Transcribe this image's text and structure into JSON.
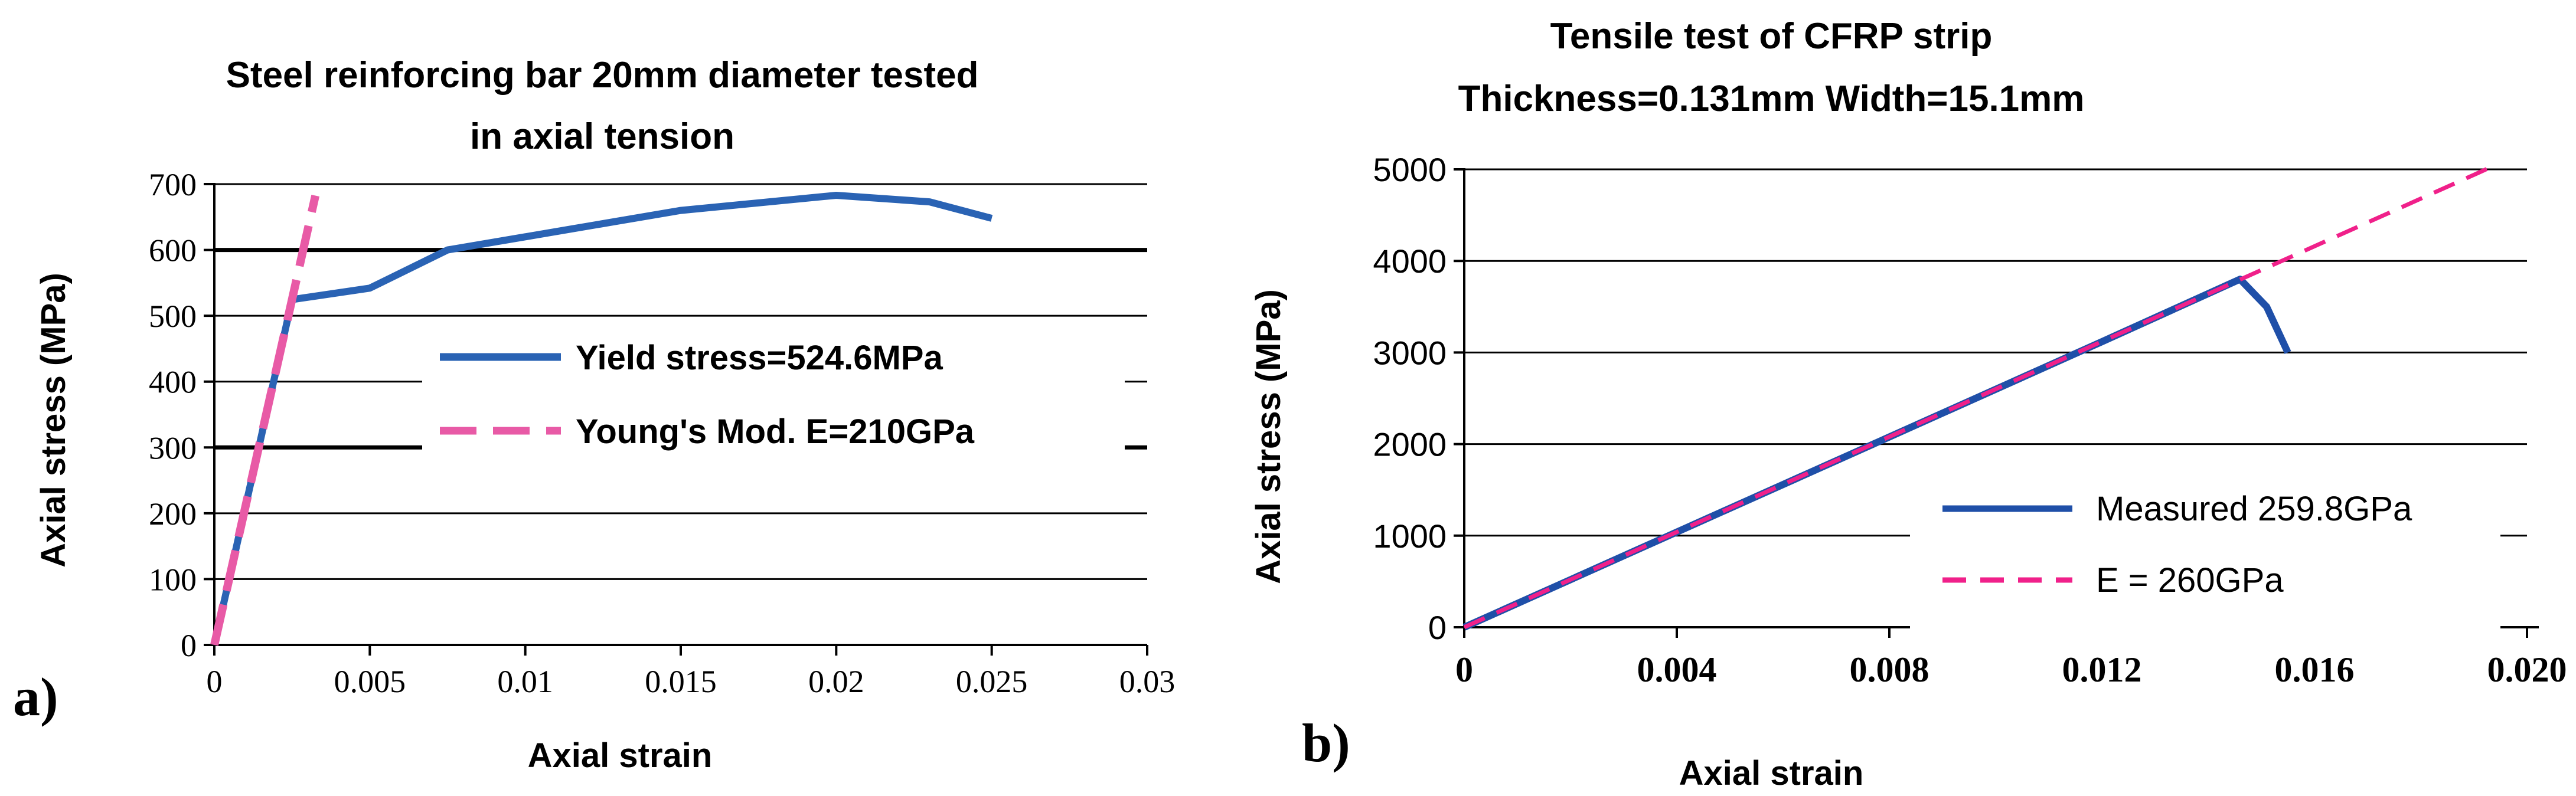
{
  "chart_data": [
    {
      "panel_label": "a)",
      "type": "line",
      "title": [
        "Steel reinforcing bar 20mm diameter tested",
        "in axial tension"
      ],
      "xlabel": "Axial strain",
      "ylabel": "Axial stress (MPa)",
      "xlim": [
        0,
        0.03
      ],
      "ylim": [
        0,
        700
      ],
      "x_ticks": [
        0,
        0.005,
        0.01,
        0.015,
        0.02,
        0.025,
        0.03
      ],
      "x_tick_labels": [
        "0",
        "0.005",
        "0.01",
        "0.015",
        "0.02",
        "0.025",
        "0.03"
      ],
      "y_ticks": [
        0,
        100,
        200,
        300,
        400,
        500,
        600,
        700
      ],
      "y_tick_labels": [
        "0",
        "100",
        "200",
        "300",
        "400",
        "500",
        "600",
        "700"
      ],
      "grid": "horizontal",
      "legend": "center-right",
      "series": [
        {
          "name": "Yield stress=524.6MPa",
          "color": "#2a63b4",
          "style": "solid",
          "x": [
            0,
            0.0025,
            0.005,
            0.0075,
            0.01,
            0.015,
            0.02,
            0.023,
            0.025
          ],
          "y": [
            0,
            524.6,
            542,
            600,
            620,
            660,
            683,
            673,
            648
          ]
        },
        {
          "name": "Young's Mod. E=210GPa",
          "color": "#e85aa6",
          "style": "dashed",
          "x": [
            0,
            0.00325
          ],
          "y": [
            0,
            682.5
          ]
        }
      ]
    },
    {
      "panel_label": "b)",
      "type": "line",
      "title": [
        "Tensile test of CFRP strip",
        "Thickness=0.131mm  Width=15.1mm"
      ],
      "xlabel": "Axial strain",
      "ylabel": "Axial stress (MPa)",
      "xlim": [
        0,
        0.02
      ],
      "ylim": [
        0,
        5000
      ],
      "x_ticks": [
        0,
        0.004,
        0.008,
        0.012,
        0.016,
        0.02
      ],
      "x_tick_labels": [
        "0",
        "0.004",
        "0.008",
        "0.012",
        "0.016",
        "0.020"
      ],
      "y_ticks": [
        0,
        1000,
        2000,
        3000,
        4000,
        5000
      ],
      "y_tick_labels": [
        "0",
        "1000",
        "2000",
        "3000",
        "4000",
        "5000"
      ],
      "grid": "horizontal",
      "legend": "bottom-right",
      "series": [
        {
          "name": "Measured 259.8GPa",
          "color": "#1f4fa8",
          "style": "solid",
          "x": [
            0,
            0.004,
            0.008,
            0.012,
            0.0146,
            0.0149,
            0.0151,
            0.0155
          ],
          "y": [
            0,
            1039,
            2078,
            3118,
            3800,
            3620,
            3500,
            3000
          ]
        },
        {
          "name": "E = 260GPa",
          "color": "#f0208a",
          "style": "dashed",
          "x": [
            0,
            0.0193
          ],
          "y": [
            0,
            5018
          ]
        }
      ]
    }
  ]
}
